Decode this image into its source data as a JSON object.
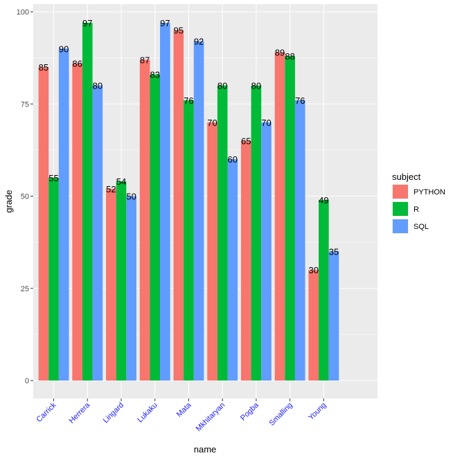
{
  "chart_data": {
    "type": "bar",
    "title": "",
    "xlabel": "name",
    "ylabel": "grade",
    "ylim": [
      0,
      100
    ],
    "yticks": [
      0,
      25,
      50,
      75,
      100
    ],
    "grid": true,
    "categories": [
      "Carrick",
      "Herrera",
      "Lingard",
      "Lukaku",
      "Mata",
      "Mkhitaryan",
      "Pogba",
      "Smalling",
      "Young"
    ],
    "series": [
      {
        "name": "PYTHON",
        "color": "#F8766D",
        "values": [
          85,
          86,
          52,
          87,
          95,
          70,
          65,
          89,
          30
        ]
      },
      {
        "name": "R",
        "color": "#00BA38",
        "values": [
          55,
          97,
          54,
          83,
          76,
          80,
          80,
          88,
          49
        ]
      },
      {
        "name": "SQL",
        "color": "#619CFF",
        "values": [
          90,
          80,
          50,
          97,
          92,
          60,
          70,
          76,
          35
        ]
      }
    ],
    "legend": {
      "title": "subject",
      "position": "right"
    },
    "panel_background": "#EBEBEB",
    "x_tick_color": "#1a1aff"
  }
}
